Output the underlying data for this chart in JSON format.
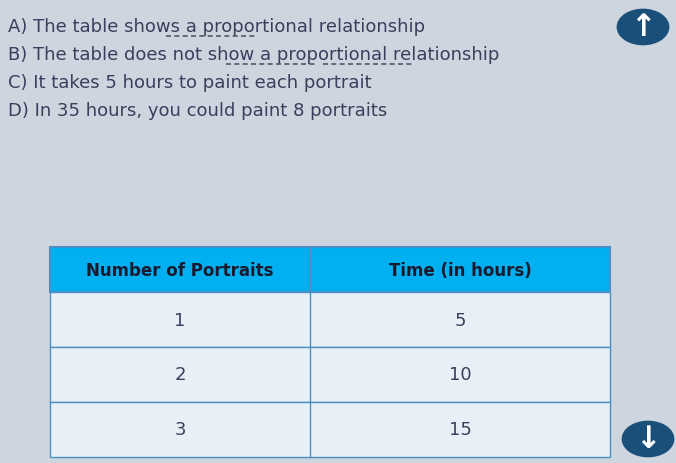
{
  "background_color": "#cdd5df",
  "options": [
    "A) The table shows a proportional relationship",
    "B) The table does not show a proportional relationship",
    "C) It takes 5 hours to paint each portrait",
    "D) In 35 hours, you could paint 8 portraits"
  ],
  "table_header": [
    "Number of Portraits",
    "Time (in hours)"
  ],
  "table_data": [
    [
      "1",
      "5"
    ],
    [
      "2",
      "10"
    ],
    [
      "3",
      "15"
    ]
  ],
  "table_header_bg": "#00b0f0",
  "table_row_bg": "#c5d8ea",
  "table_border_color": "#4a90c4",
  "text_color": "#3a3f5c",
  "font_size_options": 13,
  "font_size_table_header": 12,
  "font_size_table_data": 13,
  "arrow_circle_color": "#1a4f7a",
  "underline_color": "#555566",
  "underline_lw": 1.2
}
